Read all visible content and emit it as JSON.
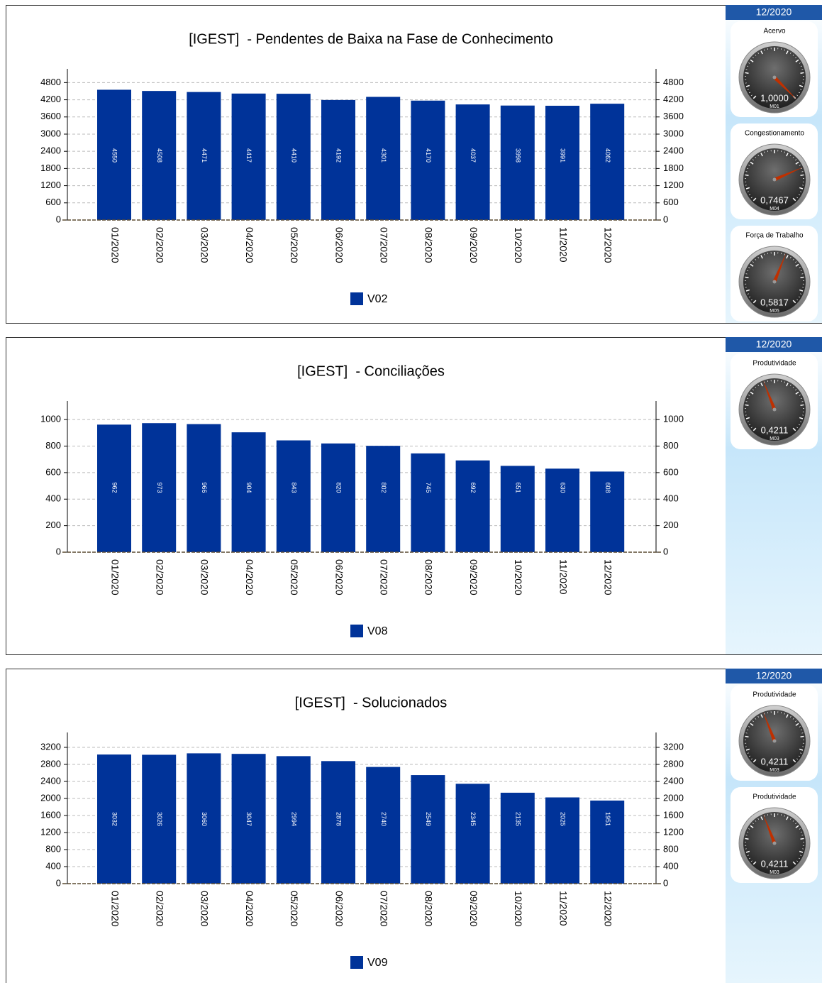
{
  "chart_data": [
    {
      "type": "bar",
      "title": "[IGEST]  - Pendentes de Baixa na Fase de Conhecimento",
      "categories": [
        "01/2020",
        "02/2020",
        "03/2020",
        "04/2020",
        "05/2020",
        "06/2020",
        "07/2020",
        "08/2020",
        "09/2020",
        "10/2020",
        "11/2020",
        "12/2020"
      ],
      "series": [
        {
          "name": "V02",
          "color": "#003399",
          "values": [
            4550,
            4508,
            4471,
            4417,
            4410,
            4192,
            4301,
            4170,
            4037,
            3998,
            3991,
            4062
          ]
        }
      ],
      "ylim": [
        0,
        5280
      ],
      "yticks": [
        0,
        600,
        1200,
        1800,
        2400,
        3000,
        3600,
        4200,
        4800
      ],
      "grid": true,
      "side_panel": {
        "period": "12/2020",
        "gauges": [
          {
            "title": "Acervo",
            "value": 1.0,
            "value_label": "1,0000",
            "code": "M01",
            "range": [
              0,
              1
            ],
            "color": "#c03000"
          },
          {
            "title": "Congestionamento",
            "value": 0.7467,
            "value_label": "0,7467",
            "code": "M04",
            "range": [
              0,
              1
            ],
            "color": "#c03000"
          },
          {
            "title": "Força de Trabalho",
            "value": 0.5817,
            "value_label": "0,5817",
            "code": "M05",
            "range": [
              0,
              1
            ],
            "color": "#c03000"
          }
        ]
      }
    },
    {
      "type": "bar",
      "title": "[IGEST]  - Conciliações",
      "categories": [
        "01/2020",
        "02/2020",
        "03/2020",
        "04/2020",
        "05/2020",
        "06/2020",
        "07/2020",
        "08/2020",
        "09/2020",
        "10/2020",
        "11/2020",
        "12/2020"
      ],
      "series": [
        {
          "name": "V08",
          "color": "#003399",
          "values": [
            962,
            973,
            966,
            904,
            843,
            820,
            802,
            745,
            692,
            651,
            630,
            608
          ]
        }
      ],
      "ylim": [
        0,
        1140
      ],
      "yticks": [
        0,
        200,
        400,
        600,
        800,
        1000
      ],
      "grid": true,
      "side_panel": {
        "period": "12/2020",
        "gauges": [
          {
            "title": "Produtividade",
            "value": 0.4211,
            "value_label": "0,4211",
            "code": "M03",
            "range": [
              0,
              1
            ],
            "color": "#c03000"
          }
        ]
      }
    },
    {
      "type": "bar",
      "title": "[IGEST]  - Solucionados",
      "categories": [
        "01/2020",
        "02/2020",
        "03/2020",
        "04/2020",
        "05/2020",
        "06/2020",
        "07/2020",
        "08/2020",
        "09/2020",
        "10/2020",
        "11/2020",
        "12/2020"
      ],
      "series": [
        {
          "name": "V09",
          "color": "#003399",
          "values": [
            3032,
            3026,
            3060,
            3047,
            2994,
            2878,
            2740,
            2549,
            2345,
            2135,
            2025,
            1951
          ]
        }
      ],
      "ylim": [
        0,
        3550
      ],
      "yticks": [
        0,
        400,
        800,
        1200,
        1600,
        2000,
        2400,
        2800,
        3200
      ],
      "grid": true,
      "side_panel": {
        "period": "12/2020",
        "gauges": [
          {
            "title": "Produtividade",
            "value": 0.4211,
            "value_label": "0,4211",
            "code": "M03",
            "range": [
              0,
              1
            ],
            "color": "#c03000"
          },
          {
            "title": "Produtividade",
            "value": 0.4211,
            "value_label": "0,4211",
            "code": "M03",
            "range": [
              0,
              1
            ],
            "color": "#c03000"
          }
        ]
      }
    }
  ]
}
